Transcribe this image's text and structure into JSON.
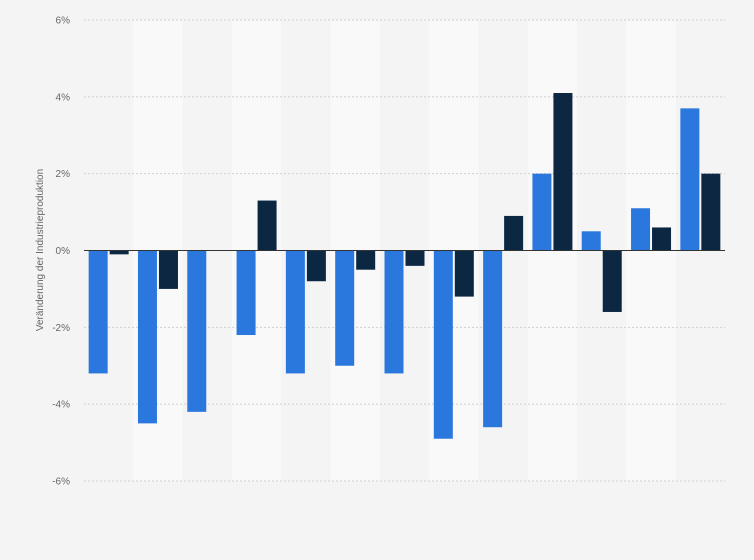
{
  "chart_data": {
    "type": "bar",
    "ylabel": "Veränderung der Industrieproduktion",
    "ylim": [
      -6,
      6
    ],
    "yticks": [
      {
        "value": 6,
        "label": "6%"
      },
      {
        "value": 4,
        "label": "4%"
      },
      {
        "value": 2,
        "label": "2%"
      },
      {
        "value": 0,
        "label": "0%"
      },
      {
        "value": -2,
        "label": "-2%"
      },
      {
        "value": -4,
        "label": "-4%"
      },
      {
        "value": -6,
        "label": "-6%"
      }
    ],
    "grid": true,
    "category_count": 13,
    "series": [
      {
        "color": "#2a78de",
        "values": [
          -3.2,
          -4.5,
          -4.2,
          -2.2,
          -3.2,
          -3.0,
          -3.2,
          -4.9,
          -4.6,
          2.0,
          0.5,
          1.1,
          3.7
        ]
      },
      {
        "color": "#0b2742",
        "values": [
          -0.1,
          -1.0,
          0.0,
          1.3,
          -0.8,
          -0.5,
          -0.4,
          -1.2,
          0.9,
          4.1,
          -1.6,
          0.6,
          2.0
        ]
      }
    ],
    "colors": {
      "background": "#f4f4f4",
      "band": "#f9f9f9",
      "grid": "#cfcfcf",
      "axis_text": "#666666",
      "zero_line": "#333333"
    }
  }
}
